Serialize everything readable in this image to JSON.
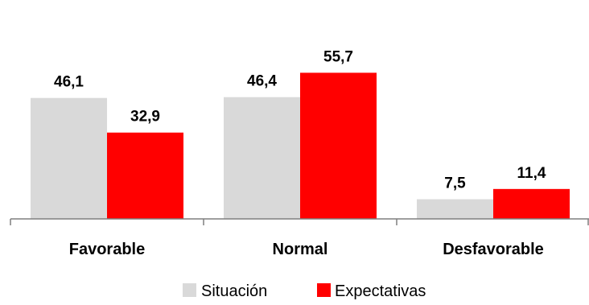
{
  "chart_data": {
    "type": "bar",
    "categories": [
      "Favorable",
      "Normal",
      "Desfavorable"
    ],
    "series": [
      {
        "name": "Situación",
        "values": [
          46.1,
          46.4,
          7.5
        ],
        "labels": [
          "46,1",
          "46,4",
          "7,5"
        ],
        "color": "#d9d9d9"
      },
      {
        "name": "Expectativas",
        "values": [
          32.9,
          55.7,
          11.4
        ],
        "labels": [
          "32,9",
          "55,7",
          "11,4"
        ],
        "color": "#ff0000"
      }
    ],
    "title": "",
    "xlabel": "",
    "ylabel": "",
    "ylim": [
      0,
      60
    ],
    "grid": false,
    "legend_position": "bottom"
  }
}
